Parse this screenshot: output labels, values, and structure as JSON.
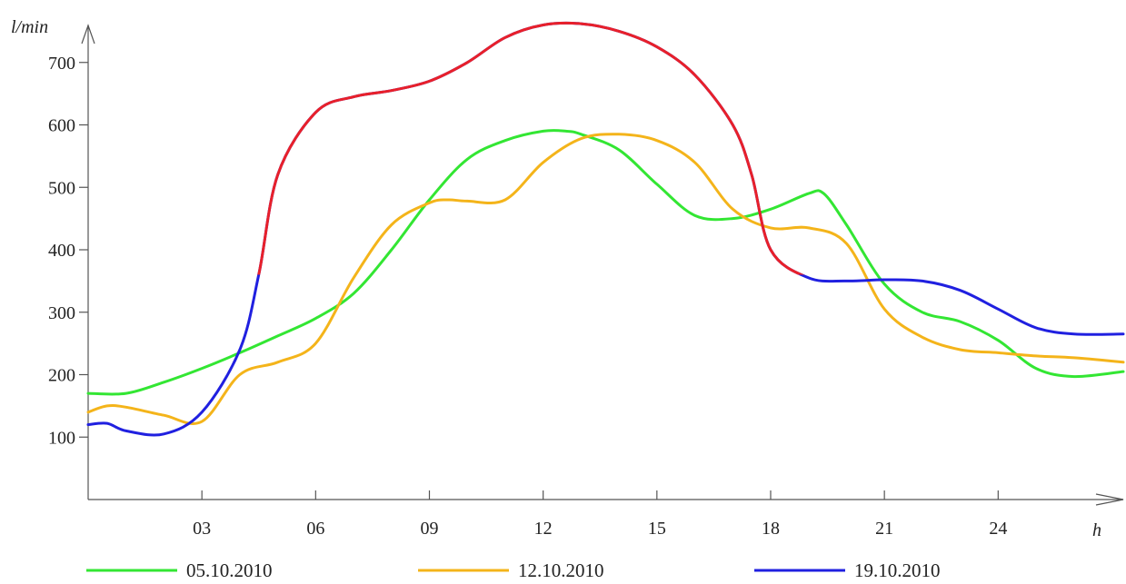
{
  "chart_data": {
    "type": "line",
    "xlabel": "h",
    "ylabel": "l/min",
    "xlim": [
      0,
      27.3
    ],
    "ylim": [
      0,
      800
    ],
    "xticks": [
      3,
      6,
      9,
      12,
      15,
      18,
      21,
      24
    ],
    "xtick_labels": [
      "03",
      "06",
      "09",
      "12",
      "15",
      "18",
      "21",
      "24"
    ],
    "yticks": [
      100,
      200,
      300,
      400,
      500,
      600,
      700
    ],
    "yticklabels": [
      "100",
      "200",
      "300",
      "400",
      "500",
      "600",
      "700"
    ],
    "legend_position": "bottom",
    "grid": false,
    "series": [
      {
        "name": "05.10.2010",
        "color": "#33e633",
        "x": [
          0,
          1,
          2,
          3,
          4,
          5,
          6,
          7,
          8,
          9,
          10,
          11,
          12,
          12.6,
          13,
          14,
          15,
          16,
          17,
          18,
          19,
          19.4,
          20,
          21,
          22,
          23,
          24,
          25,
          26,
          27.3
        ],
        "y": [
          170,
          170,
          188,
          210,
          235,
          262,
          290,
          330,
          400,
          480,
          545,
          575,
          590,
          590,
          585,
          560,
          505,
          455,
          450,
          465,
          490,
          490,
          440,
          345,
          300,
          285,
          255,
          210,
          197,
          205
        ]
      },
      {
        "name": "12.10.2010",
        "color": "#f4b41a",
        "x": [
          0,
          0.5,
          1,
          2,
          3,
          4,
          5,
          6,
          7,
          8,
          9,
          9.5,
          10,
          11,
          12,
          13,
          14,
          15,
          16,
          17,
          18,
          19,
          20,
          21,
          22,
          23,
          24,
          25,
          26,
          27.3
        ],
        "y": [
          140,
          150,
          148,
          135,
          125,
          200,
          220,
          250,
          355,
          440,
          475,
          480,
          478,
          480,
          540,
          578,
          585,
          575,
          540,
          465,
          435,
          435,
          410,
          305,
          260,
          240,
          235,
          230,
          227,
          220
        ]
      },
      {
        "name": "19.10.2010",
        "color": "#2020e0",
        "segment_color": "#e8202a",
        "segment_threshold": 360,
        "x": [
          0,
          0.5,
          1,
          2,
          3,
          4,
          4.5,
          5,
          6,
          7,
          8,
          9,
          10,
          11,
          12,
          13,
          14,
          15,
          16,
          17,
          17.5,
          18,
          19,
          20,
          21,
          22,
          23,
          24,
          25,
          26,
          27.3
        ],
        "y": [
          120,
          122,
          110,
          105,
          140,
          240,
          360,
          520,
          620,
          645,
          655,
          670,
          700,
          740,
          760,
          762,
          750,
          725,
          680,
          600,
          520,
          400,
          355,
          350,
          352,
          350,
          335,
          305,
          275,
          265,
          265
        ]
      }
    ]
  }
}
